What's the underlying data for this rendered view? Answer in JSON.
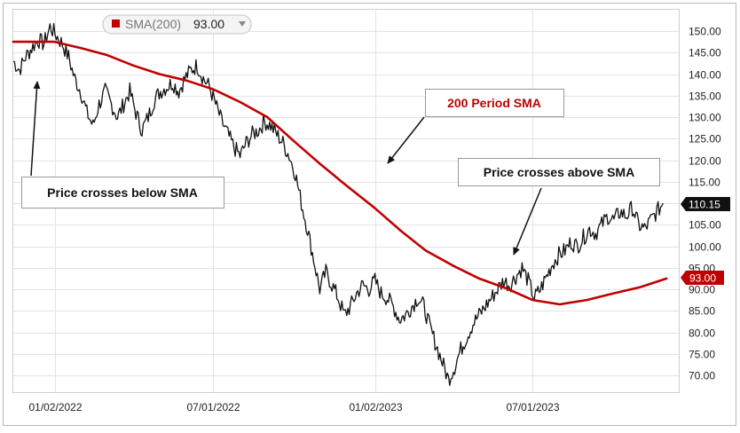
{
  "indicator": {
    "label": "SMA(200)",
    "value": "93.00",
    "color": "#c00000"
  },
  "price_tag": {
    "value": "110.15"
  },
  "sma_tag": {
    "value": "93.00"
  },
  "callouts": {
    "sma_label": "200 Period SMA",
    "cross_below": "Price crosses below SMA",
    "cross_above": "Price crosses above SMA"
  },
  "chart_data": {
    "type": "line",
    "x_tick_labels": [
      "01/02/2022",
      "07/01/2022",
      "01/02/2023",
      "07/01/2023"
    ],
    "y_ticks": [
      150,
      145,
      140,
      135,
      130,
      125,
      120,
      115,
      110,
      105,
      100,
      95,
      90,
      85,
      80,
      75,
      70
    ],
    "y_tick_labels": [
      "150.00",
      "145.00",
      "140.00",
      "135.00",
      "130.00",
      "125.00",
      "120.00",
      "115.00",
      "110.00",
      "105.00",
      "100.00",
      "95.00",
      "90.00",
      "85.00",
      "80.00",
      "75.00",
      "70.00"
    ],
    "ylim": [
      66,
      152
    ],
    "xlim": [
      "2021-11-15",
      "2023-12-15"
    ],
    "grid": true,
    "series": [
      {
        "name": "",
        "color": "#111111",
        "points": [
          [
            "2021-11-15",
            143
          ],
          [
            "2021-11-22",
            141
          ],
          [
            "2021-11-29",
            144
          ],
          [
            "2021-12-06",
            146
          ],
          [
            "2021-12-13",
            148
          ],
          [
            "2021-12-20",
            147
          ],
          [
            "2021-12-27",
            151
          ],
          [
            "2022-01-03",
            149
          ],
          [
            "2022-01-10",
            147
          ],
          [
            "2022-01-17",
            144
          ],
          [
            "2022-01-24",
            139
          ],
          [
            "2022-01-31",
            136
          ],
          [
            "2022-02-07",
            131
          ],
          [
            "2022-02-14",
            128
          ],
          [
            "2022-02-21",
            133
          ],
          [
            "2022-02-28",
            136
          ],
          [
            "2022-03-07",
            133
          ],
          [
            "2022-03-14",
            130
          ],
          [
            "2022-03-21",
            133
          ],
          [
            "2022-03-28",
            136
          ],
          [
            "2022-04-04",
            131
          ],
          [
            "2022-04-11",
            127
          ],
          [
            "2022-04-18",
            130
          ],
          [
            "2022-04-25",
            134
          ],
          [
            "2022-05-02",
            136
          ],
          [
            "2022-05-09",
            137
          ],
          [
            "2022-05-16",
            138
          ],
          [
            "2022-05-23",
            136
          ],
          [
            "2022-05-30",
            139
          ],
          [
            "2022-06-06",
            141
          ],
          [
            "2022-06-13",
            142
          ],
          [
            "2022-06-20",
            139
          ],
          [
            "2022-06-27",
            137
          ],
          [
            "2022-07-04",
            133
          ],
          [
            "2022-07-11",
            129
          ],
          [
            "2022-07-18",
            126
          ],
          [
            "2022-07-25",
            123
          ],
          [
            "2022-08-01",
            121
          ],
          [
            "2022-08-08",
            124
          ],
          [
            "2022-08-15",
            126
          ],
          [
            "2022-08-22",
            127
          ],
          [
            "2022-08-29",
            129
          ],
          [
            "2022-09-05",
            128
          ],
          [
            "2022-09-12",
            126
          ],
          [
            "2022-09-19",
            124
          ],
          [
            "2022-09-26",
            121
          ],
          [
            "2022-10-03",
            117
          ],
          [
            "2022-10-10",
            110
          ],
          [
            "2022-10-17",
            104
          ],
          [
            "2022-10-24",
            97
          ],
          [
            "2022-10-31",
            90
          ],
          [
            "2022-11-07",
            94
          ],
          [
            "2022-11-14",
            91
          ],
          [
            "2022-11-21",
            88
          ],
          [
            "2022-11-28",
            84
          ],
          [
            "2022-12-05",
            86
          ],
          [
            "2022-12-12",
            89
          ],
          [
            "2022-12-19",
            91
          ],
          [
            "2022-12-26",
            90
          ],
          [
            "2023-01-02",
            92
          ],
          [
            "2023-01-09",
            89
          ],
          [
            "2023-01-16",
            88
          ],
          [
            "2023-01-23",
            86
          ],
          [
            "2023-01-30",
            83
          ],
          [
            "2023-02-06",
            84
          ],
          [
            "2023-02-13",
            86
          ],
          [
            "2023-02-20",
            88
          ],
          [
            "2023-02-27",
            86
          ],
          [
            "2023-03-06",
            81
          ],
          [
            "2023-03-13",
            77
          ],
          [
            "2023-03-20",
            73
          ],
          [
            "2023-03-27",
            69
          ],
          [
            "2023-04-03",
            72
          ],
          [
            "2023-04-10",
            76
          ],
          [
            "2023-04-17",
            79
          ],
          [
            "2023-04-24",
            82
          ],
          [
            "2023-05-01",
            84
          ],
          [
            "2023-05-08",
            86
          ],
          [
            "2023-05-15",
            88
          ],
          [
            "2023-05-22",
            90
          ],
          [
            "2023-05-29",
            92
          ],
          [
            "2023-06-05",
            91
          ],
          [
            "2023-06-12",
            93
          ],
          [
            "2023-06-19",
            95
          ],
          [
            "2023-06-26",
            92
          ],
          [
            "2023-07-03",
            88
          ],
          [
            "2023-07-10",
            90
          ],
          [
            "2023-07-17",
            93
          ],
          [
            "2023-07-24",
            96
          ],
          [
            "2023-07-31",
            98
          ],
          [
            "2023-08-07",
            99
          ],
          [
            "2023-08-14",
            101
          ],
          [
            "2023-08-21",
            100
          ],
          [
            "2023-08-28",
            102
          ],
          [
            "2023-09-04",
            104
          ],
          [
            "2023-09-11",
            103
          ],
          [
            "2023-09-18",
            105
          ],
          [
            "2023-09-25",
            107
          ],
          [
            "2023-10-02",
            106
          ],
          [
            "2023-10-09",
            108
          ],
          [
            "2023-10-16",
            107
          ],
          [
            "2023-10-23",
            109
          ],
          [
            "2023-10-30",
            105
          ],
          [
            "2023-11-06",
            104
          ],
          [
            "2023-11-13",
            106
          ],
          [
            "2023-11-20",
            108
          ],
          [
            "2023-11-27",
            110
          ]
        ]
      },
      {
        "name": "SMA(200)",
        "color": "#c00000",
        "points": [
          [
            "2021-11-15",
            147.5
          ],
          [
            "2022-01-01",
            147.5
          ],
          [
            "2022-02-01",
            146
          ],
          [
            "2022-03-01",
            144.5
          ],
          [
            "2022-04-01",
            142
          ],
          [
            "2022-05-01",
            140
          ],
          [
            "2022-06-01",
            138.5
          ],
          [
            "2022-07-01",
            136.5
          ],
          [
            "2022-08-01",
            133.5
          ],
          [
            "2022-09-01",
            130
          ],
          [
            "2022-10-01",
            124.5
          ],
          [
            "2022-11-01",
            119
          ],
          [
            "2022-12-01",
            114
          ],
          [
            "2023-01-01",
            109
          ],
          [
            "2023-02-01",
            103.5
          ],
          [
            "2023-03-01",
            99
          ],
          [
            "2023-04-01",
            95.5
          ],
          [
            "2023-05-01",
            92.5
          ],
          [
            "2023-06-01",
            90.2
          ],
          [
            "2023-07-01",
            87.5
          ],
          [
            "2023-08-01",
            86.5
          ],
          [
            "2023-09-01",
            87.5
          ],
          [
            "2023-10-01",
            89
          ],
          [
            "2023-11-01",
            90.5
          ],
          [
            "2023-12-01",
            92.5
          ]
        ]
      }
    ]
  }
}
